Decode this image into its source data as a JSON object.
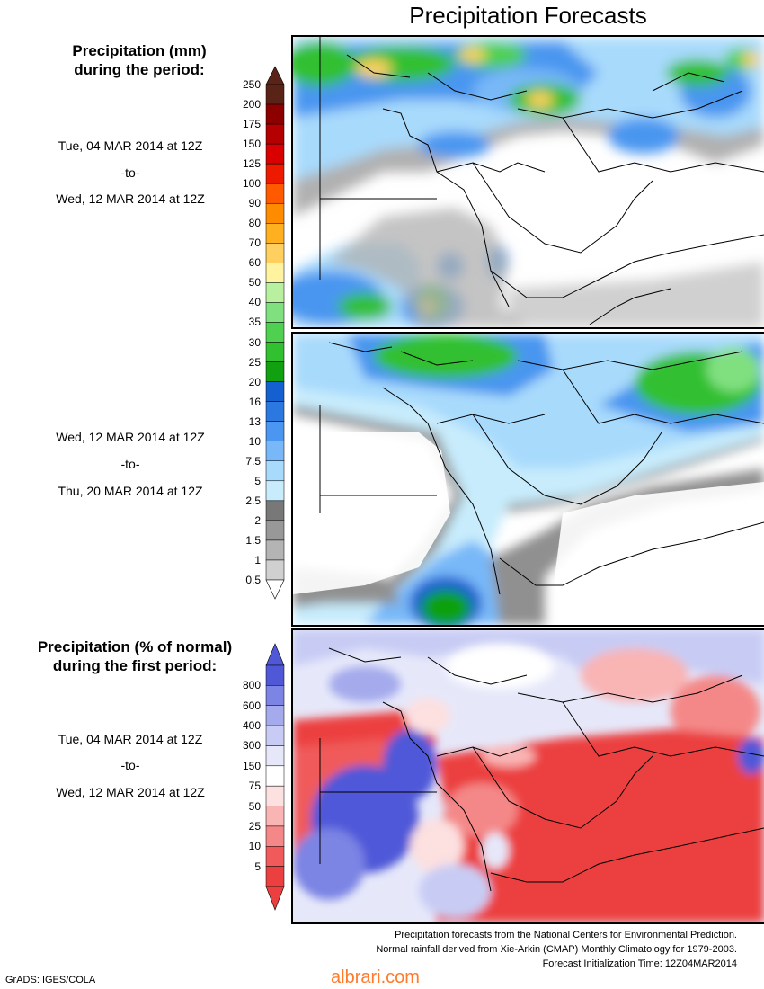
{
  "title": "Precipitation Forecasts",
  "section1": {
    "heading_line1": "Precipitation (mm)",
    "heading_line2": "during the period:",
    "start": "Tue, 04 MAR 2014 at 12Z",
    "to": "-to-",
    "end": "Wed, 12 MAR 2014 at 12Z"
  },
  "section2": {
    "start": "Wed, 12 MAR 2014 at 12Z",
    "to": "-to-",
    "end": "Thu, 20 MAR 2014 at 12Z"
  },
  "section3": {
    "heading_line1": "Precipitation (% of normal)",
    "heading_line2": "during the first period:",
    "start": "Tue, 04 MAR 2014 at 12Z",
    "to": "-to-",
    "end": "Wed, 12 MAR 2014 at 12Z"
  },
  "precip_scale": {
    "labels": [
      "250",
      "200",
      "175",
      "150",
      "125",
      "100",
      "90",
      "80",
      "70",
      "60",
      "50",
      "40",
      "35",
      "30",
      "25",
      "20",
      "16",
      "13",
      "10",
      "7.5",
      "5",
      "2.5",
      "2",
      "1.5",
      "1",
      "0.5"
    ],
    "colors": [
      "#5a2318",
      "#8c0000",
      "#b40000",
      "#d80000",
      "#ee1a00",
      "#ff5a00",
      "#ff8c00",
      "#ffb020",
      "#ffd060",
      "#fff3a0",
      "#b8f0a0",
      "#80e080",
      "#50d050",
      "#30c030",
      "#10a010",
      "#1560d0",
      "#2a78e0",
      "#4a96f0",
      "#78b8f8",
      "#a8dafc",
      "#c8ecfc",
      "#787878",
      "#989898",
      "#b4b4b4",
      "#d0d0d0"
    ]
  },
  "pct_scale": {
    "labels": [
      "800",
      "600",
      "400",
      "300",
      "150",
      "75",
      "50",
      "25",
      "10",
      "5"
    ],
    "colors": [
      "#5058d8",
      "#7c84e4",
      "#a4aaec",
      "#c8ccf4",
      "#e6e8fa",
      "#ffffff",
      "#fde0e0",
      "#f9b4b4",
      "#f48888",
      "#f05a5a",
      "#ec4040"
    ]
  },
  "footer": {
    "line1": "Precipitation forecasts from the National Centers for Environmental Prediction.",
    "line2": "Normal rainfall derived from Xie-Arkin (CMAP) Monthly Climatology for 1979-2003.",
    "line3": "Forecast Initialization Time: 12Z04MAR2014"
  },
  "credit": "GrADS: IGES/COLA",
  "watermark": "albrari.com"
}
